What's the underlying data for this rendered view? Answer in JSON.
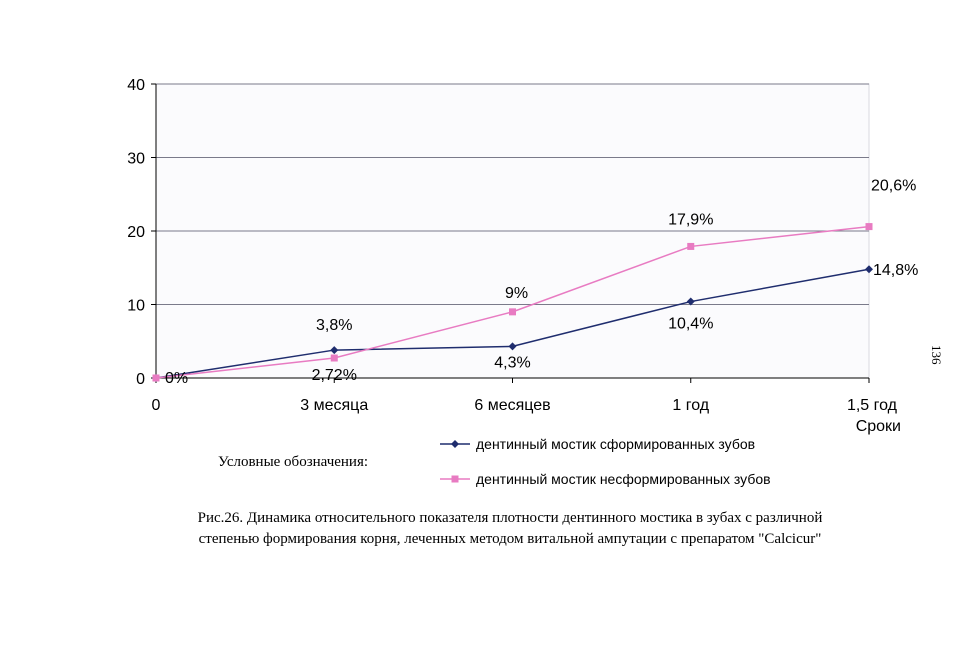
{
  "page_number": "136",
  "legend": {
    "caption": "Условные обозначения:"
  },
  "caption": "Рис.26. Динамика относительного показателя плотности  дентинного мостика в зубах с различной степенью формирования корня, леченных методом витальной ампутации с препаратом \"Calcicur\"",
  "chart_data": {
    "type": "line",
    "title": "",
    "xlabel": "Сроки",
    "ylabel": "",
    "categories": [
      "0",
      "3 месяца",
      "6 месяцев",
      "1 год",
      "1,5 год"
    ],
    "ylim": [
      0,
      40
    ],
    "yticks": [
      "0",
      "10",
      "20",
      "30",
      "40"
    ],
    "grid": true,
    "legend_position": "bottom",
    "series": [
      {
        "name": "дентинный мостик сформированных зубов",
        "values": [
          0,
          3.8,
          4.3,
          10.4,
          14.8
        ],
        "labels": [
          "0%",
          "3,8%",
          "4,3%",
          "10,4%",
          "14,8%"
        ],
        "color": "#1f2d6e",
        "marker": "diamond"
      },
      {
        "name": "дентинный мостик несформированных зубов",
        "values": [
          0,
          2.72,
          9,
          17.9,
          20.6
        ],
        "labels": [
          "",
          "2,72%",
          "9%",
          "17,9%",
          "20,6%"
        ],
        "color": "#e87bc2",
        "marker": "square"
      }
    ]
  }
}
